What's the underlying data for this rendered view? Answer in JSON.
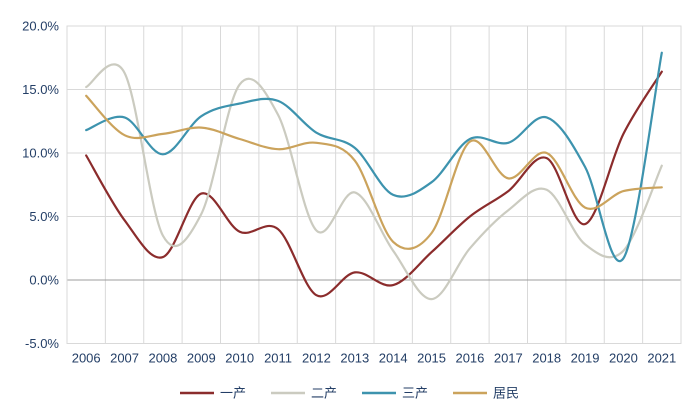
{
  "page": {
    "background": "#ffffff"
  },
  "chart_data": {
    "type": "line",
    "title": "",
    "smoothed": true,
    "categories": [
      "2006",
      "2007",
      "2008",
      "2009",
      "2010",
      "2011",
      "2012",
      "2013",
      "2014",
      "2015",
      "2016",
      "2017",
      "2018",
      "2019",
      "2020",
      "2021"
    ],
    "series": [
      {
        "name": "一产",
        "color": "#8B2C2C",
        "values": [
          9.8,
          4.7,
          1.8,
          6.8,
          3.8,
          4.0,
          -1.2,
          0.6,
          -0.4,
          2.2,
          5.0,
          7.0,
          9.6,
          4.4,
          11.5,
          16.4
        ]
      },
      {
        "name": "二产",
        "color": "#CBCBC0",
        "values": [
          15.2,
          16.3,
          3.5,
          5.2,
          15.4,
          13.0,
          3.9,
          6.9,
          2.3,
          -1.5,
          2.5,
          5.5,
          7.1,
          2.8,
          2.3,
          9.0
        ]
      },
      {
        "name": "三产",
        "color": "#3D93AE",
        "values": [
          11.8,
          12.8,
          9.9,
          12.9,
          13.9,
          14.1,
          11.6,
          10.4,
          6.7,
          7.7,
          11.1,
          10.8,
          12.8,
          8.9,
          1.7,
          17.9
        ]
      },
      {
        "name": "居民",
        "color": "#CBA35C",
        "values": [
          14.5,
          11.4,
          11.5,
          12.0,
          11.1,
          10.3,
          10.8,
          9.4,
          3.0,
          3.7,
          10.9,
          8.0,
          10.0,
          5.7,
          7.0,
          7.3
        ]
      }
    ],
    "xlabel": "",
    "ylabel": "",
    "ylim": [
      -5,
      20
    ],
    "y_ticks": [
      {
        "value": 20,
        "label": "20.0%"
      },
      {
        "value": 15,
        "label": "15.0%"
      },
      {
        "value": 10,
        "label": "10.0%"
      },
      {
        "value": 5,
        "label": "5.0%"
      },
      {
        "value": 0,
        "label": "0.0%"
      },
      {
        "value": -5,
        "label": "-5.0%"
      }
    ],
    "grid": true,
    "legend_position": "bottom",
    "axis_text_color": "#233E66",
    "gridline_color": "#D9D9D9",
    "zero_axis_color": "#9C9C9C",
    "plot_border_color": "#D9D9D9",
    "line_width": 2.2
  }
}
